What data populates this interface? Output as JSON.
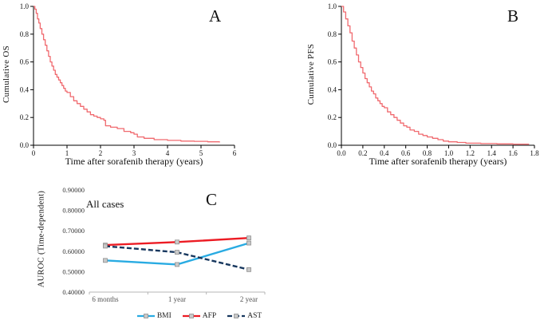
{
  "panels": {
    "a": {
      "letter": "A"
    },
    "b": {
      "letter": "B"
    },
    "c": {
      "letter": "C"
    }
  },
  "chart_data": [
    {
      "type": "line",
      "subtype": "km-step",
      "name": "cumulative-overall-survival",
      "xlabel": "Time after sorafenib therapy (years)",
      "ylabel": "Cumulative OS",
      "xlim": [
        0,
        6
      ],
      "ylim": [
        0,
        1
      ],
      "xticks": [
        0,
        1,
        2,
        3,
        4,
        5,
        6
      ],
      "xtick_labels": [
        "0",
        "1",
        "2",
        "3",
        "4",
        "5",
        "6"
      ],
      "yticks": [
        0,
        0.2,
        0.4,
        0.6,
        0.8,
        1
      ],
      "ytick_labels": [
        "0.0",
        "0.2",
        "0.4",
        "0.6",
        "0.8",
        "1.0"
      ],
      "line_color": "#f0696e",
      "grid": false,
      "points": [
        [
          0,
          1.0
        ],
        [
          0.04,
          0.98
        ],
        [
          0.08,
          0.95
        ],
        [
          0.12,
          0.91
        ],
        [
          0.16,
          0.88
        ],
        [
          0.2,
          0.84
        ],
        [
          0.25,
          0.8
        ],
        [
          0.3,
          0.76
        ],
        [
          0.35,
          0.72
        ],
        [
          0.4,
          0.68
        ],
        [
          0.45,
          0.64
        ],
        [
          0.5,
          0.6
        ],
        [
          0.55,
          0.57
        ],
        [
          0.6,
          0.54
        ],
        [
          0.65,
          0.51
        ],
        [
          0.7,
          0.49
        ],
        [
          0.75,
          0.47
        ],
        [
          0.8,
          0.45
        ],
        [
          0.85,
          0.43
        ],
        [
          0.9,
          0.41
        ],
        [
          0.95,
          0.39
        ],
        [
          1.0,
          0.38
        ],
        [
          1.1,
          0.35
        ],
        [
          1.2,
          0.32
        ],
        [
          1.3,
          0.3
        ],
        [
          1.4,
          0.28
        ],
        [
          1.5,
          0.26
        ],
        [
          1.6,
          0.24
        ],
        [
          1.7,
          0.22
        ],
        [
          1.8,
          0.21
        ],
        [
          1.9,
          0.2
        ],
        [
          2.0,
          0.19
        ],
        [
          2.1,
          0.18
        ],
        [
          2.15,
          0.14
        ],
        [
          2.3,
          0.13
        ],
        [
          2.5,
          0.12
        ],
        [
          2.7,
          0.1
        ],
        [
          2.9,
          0.09
        ],
        [
          3.0,
          0.08
        ],
        [
          3.1,
          0.06
        ],
        [
          3.3,
          0.05
        ],
        [
          3.6,
          0.04
        ],
        [
          4.0,
          0.035
        ],
        [
          4.4,
          0.03
        ],
        [
          4.8,
          0.028
        ],
        [
          5.2,
          0.025
        ],
        [
          5.55,
          0.02
        ]
      ]
    },
    {
      "type": "line",
      "subtype": "km-step",
      "name": "cumulative-progression-free-survival",
      "xlabel": "Time after sorafenib therapy (years)",
      "ylabel": "Cumulative PFS",
      "xlim": [
        0,
        1.8
      ],
      "ylim": [
        0,
        1
      ],
      "xticks": [
        0,
        0.2,
        0.4,
        0.6,
        0.8,
        1.0,
        1.2,
        1.4,
        1.6,
        1.8
      ],
      "xtick_labels": [
        "0.0",
        "0.2",
        "0.4",
        "0.6",
        "0.8",
        "1.0",
        "1.2",
        "1.4",
        "1.6",
        "1.8"
      ],
      "yticks": [
        0,
        0.2,
        0.4,
        0.6,
        0.8,
        1
      ],
      "ytick_labels": [
        "0.0",
        "0.2",
        "0.4",
        "0.6",
        "0.8",
        "1.0"
      ],
      "line_color": "#f0696e",
      "grid": false,
      "points": [
        [
          0,
          1.0
        ],
        [
          0.02,
          0.96
        ],
        [
          0.04,
          0.91
        ],
        [
          0.06,
          0.86
        ],
        [
          0.08,
          0.81
        ],
        [
          0.1,
          0.75
        ],
        [
          0.12,
          0.7
        ],
        [
          0.14,
          0.65
        ],
        [
          0.16,
          0.6
        ],
        [
          0.18,
          0.56
        ],
        [
          0.2,
          0.52
        ],
        [
          0.22,
          0.48
        ],
        [
          0.24,
          0.45
        ],
        [
          0.26,
          0.42
        ],
        [
          0.28,
          0.39
        ],
        [
          0.3,
          0.37
        ],
        [
          0.32,
          0.34
        ],
        [
          0.34,
          0.32
        ],
        [
          0.36,
          0.3
        ],
        [
          0.38,
          0.28
        ],
        [
          0.4,
          0.27
        ],
        [
          0.43,
          0.24
        ],
        [
          0.46,
          0.22
        ],
        [
          0.49,
          0.2
        ],
        [
          0.52,
          0.18
        ],
        [
          0.55,
          0.16
        ],
        [
          0.58,
          0.14
        ],
        [
          0.61,
          0.13
        ],
        [
          0.64,
          0.11
        ],
        [
          0.68,
          0.1
        ],
        [
          0.72,
          0.08
        ],
        [
          0.76,
          0.07
        ],
        [
          0.8,
          0.06
        ],
        [
          0.85,
          0.05
        ],
        [
          0.9,
          0.04
        ],
        [
          0.95,
          0.03
        ],
        [
          1.0,
          0.025
        ],
        [
          1.08,
          0.02
        ],
        [
          1.16,
          0.015
        ],
        [
          1.3,
          0.012
        ],
        [
          1.45,
          0.01
        ],
        [
          1.6,
          0.008
        ],
        [
          1.75,
          0.008
        ]
      ]
    },
    {
      "type": "line",
      "name": "time-dependent-auroc",
      "ylabel": "AUROC (Time-dependent)",
      "annotation": "All cases",
      "categories": [
        "6 months",
        "1 year",
        "2 year"
      ],
      "ylim": [
        0.4,
        0.9
      ],
      "yticks": [
        0.4,
        0.5,
        0.6,
        0.7,
        0.8,
        0.9
      ],
      "ytick_labels": [
        "0.40000",
        "0.50000",
        "0.60000",
        "0.70000",
        "0.80000",
        "0.90000"
      ],
      "grid": false,
      "legend_position": "bottom",
      "marker_fill": "#c9c9c9",
      "marker_stroke": "#8f8f8f",
      "series": [
        {
          "name": "BMI",
          "color": "#29abe2",
          "dash": "",
          "values": [
            0.555,
            0.535,
            0.64
          ]
        },
        {
          "name": "AFP",
          "color": "#ec1c24",
          "dash": "",
          "values": [
            0.63,
            0.645,
            0.665
          ]
        },
        {
          "name": "AST",
          "color": "#17375e",
          "dash": "6,3",
          "values": [
            0.625,
            0.595,
            0.51
          ]
        }
      ]
    }
  ]
}
